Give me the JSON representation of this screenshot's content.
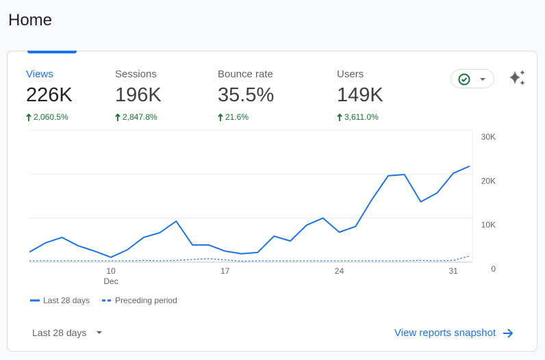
{
  "header": {
    "title": "Home"
  },
  "metrics": [
    {
      "label": "Views",
      "value": "226K",
      "change": "2,060.5%"
    },
    {
      "label": "Sessions",
      "value": "196K",
      "change": "2,847.8%"
    },
    {
      "label": "Bounce rate",
      "value": "35.5%",
      "change": "21.6%"
    },
    {
      "label": "Users",
      "value": "149K",
      "change": "3,611.0%"
    }
  ],
  "chart_data": {
    "type": "line",
    "categories": [
      null,
      null,
      null,
      null,
      null,
      "10",
      null,
      null,
      null,
      null,
      null,
      null,
      "17",
      null,
      null,
      null,
      null,
      null,
      null,
      "24",
      null,
      null,
      null,
      null,
      null,
      null,
      "31",
      null
    ],
    "x_month_label": "Dec",
    "series": [
      {
        "name": "Last 28 days",
        "color": "#1a73e8",
        "dashed": false,
        "values": [
          2300,
          4400,
          5600,
          3700,
          2500,
          1100,
          2800,
          5600,
          6700,
          9300,
          3900,
          3900,
          2500,
          1900,
          2200,
          5900,
          4800,
          8400,
          10000,
          6800,
          8100,
          14200,
          19600,
          19900,
          13700,
          15700,
          20200,
          21800
        ]
      },
      {
        "name": "Preceding period",
        "color": "#1a73e8",
        "dashed": true,
        "values": [
          300,
          300,
          300,
          300,
          300,
          300,
          300,
          400,
          300,
          400,
          600,
          800,
          500,
          200,
          300,
          300,
          300,
          300,
          300,
          300,
          300,
          300,
          300,
          300,
          400,
          300,
          400,
          1400
        ]
      }
    ],
    "ylim": [
      0,
      30000
    ],
    "yticks": [
      0,
      {
        "value": 10000,
        "label": "10K"
      },
      {
        "value": 20000,
        "label": "20K"
      },
      {
        "value": 30000,
        "label": "30K"
      }
    ],
    "grid": true
  },
  "footer": {
    "date_range": "Last 28 days",
    "link": "View reports snapshot"
  }
}
